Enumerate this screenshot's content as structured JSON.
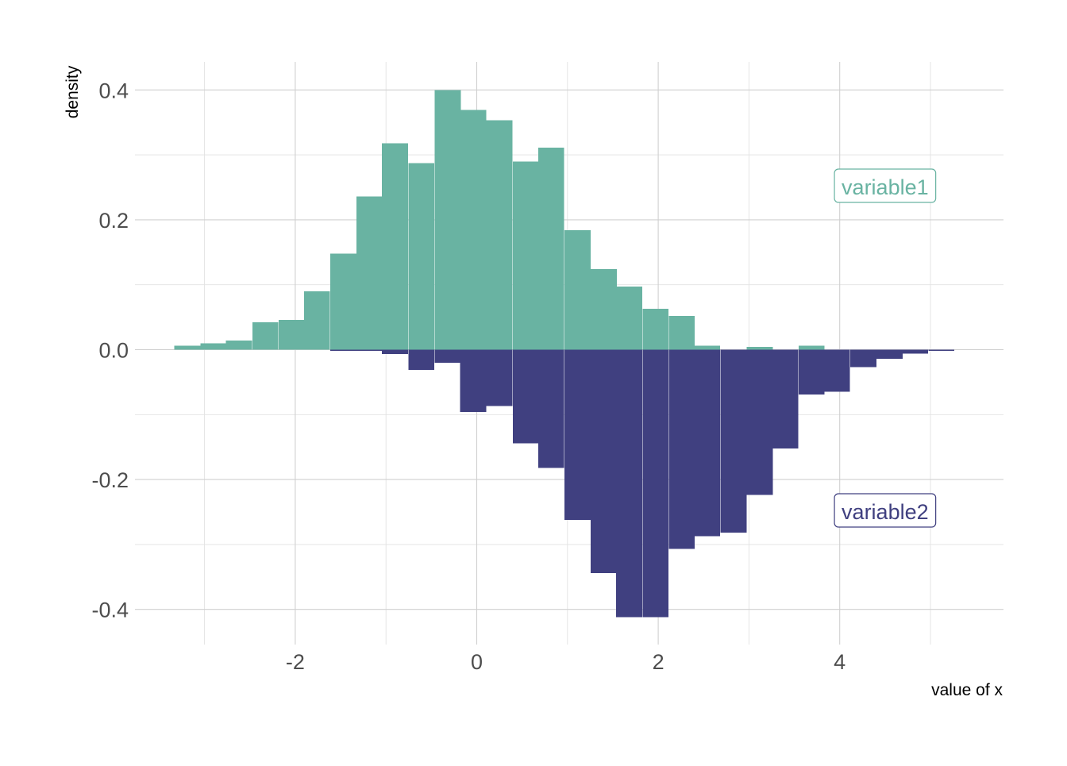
{
  "chart_data": {
    "type": "bar",
    "title": "",
    "xlabel": "value of x",
    "ylabel": "density",
    "xlim": [
      -3.85,
      5.75
    ],
    "ylim": [
      -0.45,
      0.445
    ],
    "grid": true,
    "legend": "none",
    "x_ticks": [
      {
        "value": -2,
        "label": "-2"
      },
      {
        "value": 0,
        "label": "0"
      },
      {
        "value": 2,
        "label": "2"
      },
      {
        "value": 4,
        "label": "4"
      }
    ],
    "y_ticks": [
      {
        "value": 0.4,
        "label": "0.4"
      },
      {
        "value": 0.2,
        "label": "0.2"
      },
      {
        "value": 0.0,
        "label": "0.0"
      },
      {
        "value": -0.2,
        "label": "-0.2"
      },
      {
        "value": -0.4,
        "label": "-0.4"
      }
    ],
    "bin_width": 0.287,
    "series": [
      {
        "name": "variable1",
        "color": "#69b3a2",
        "direction": "up",
        "label_anchor": {
          "x": 4.5,
          "y": 0.25
        },
        "bins": [
          {
            "x": -3.19,
            "y": 0.006
          },
          {
            "x": -2.9,
            "y": 0.01
          },
          {
            "x": -2.62,
            "y": 0.014
          },
          {
            "x": -2.33,
            "y": 0.042
          },
          {
            "x": -2.04,
            "y": 0.046
          },
          {
            "x": -1.76,
            "y": 0.09
          },
          {
            "x": -1.47,
            "y": 0.148
          },
          {
            "x": -1.18,
            "y": 0.236
          },
          {
            "x": -0.9,
            "y": 0.318
          },
          {
            "x": -0.61,
            "y": 0.287
          },
          {
            "x": -0.32,
            "y": 0.4
          },
          {
            "x": -0.04,
            "y": 0.369
          },
          {
            "x": 0.25,
            "y": 0.353
          },
          {
            "x": 0.54,
            "y": 0.29
          },
          {
            "x": 0.82,
            "y": 0.311
          },
          {
            "x": 1.11,
            "y": 0.184
          },
          {
            "x": 1.4,
            "y": 0.124
          },
          {
            "x": 1.68,
            "y": 0.097
          },
          {
            "x": 1.97,
            "y": 0.063
          },
          {
            "x": 2.26,
            "y": 0.052
          },
          {
            "x": 2.54,
            "y": 0.006
          },
          {
            "x": 2.83,
            "y": 0.0
          },
          {
            "x": 3.12,
            "y": 0.004
          },
          {
            "x": 3.4,
            "y": 0.0
          },
          {
            "x": 3.69,
            "y": 0.006
          }
        ]
      },
      {
        "name": "variable2",
        "color": "#404080",
        "direction": "down",
        "label_anchor": {
          "x": 4.5,
          "y": -0.25
        },
        "bins": [
          {
            "x": -1.47,
            "y": -0.002
          },
          {
            "x": -1.18,
            "y": -0.002
          },
          {
            "x": -0.9,
            "y": -0.007
          },
          {
            "x": -0.61,
            "y": -0.031
          },
          {
            "x": -0.32,
            "y": -0.02
          },
          {
            "x": -0.04,
            "y": -0.096
          },
          {
            "x": 0.25,
            "y": -0.087
          },
          {
            "x": 0.54,
            "y": -0.144
          },
          {
            "x": 0.82,
            "y": -0.182
          },
          {
            "x": 1.11,
            "y": -0.262
          },
          {
            "x": 1.4,
            "y": -0.344
          },
          {
            "x": 1.68,
            "y": -0.412
          },
          {
            "x": 1.97,
            "y": -0.412
          },
          {
            "x": 2.26,
            "y": -0.307
          },
          {
            "x": 2.54,
            "y": -0.287
          },
          {
            "x": 2.83,
            "y": -0.282
          },
          {
            "x": 3.12,
            "y": -0.224
          },
          {
            "x": 3.4,
            "y": -0.152
          },
          {
            "x": 3.69,
            "y": -0.069
          },
          {
            "x": 3.97,
            "y": -0.065
          },
          {
            "x": 4.26,
            "y": -0.027
          },
          {
            "x": 4.55,
            "y": -0.014
          },
          {
            "x": 4.83,
            "y": -0.006
          },
          {
            "x": 5.12,
            "y": -0.002
          }
        ]
      }
    ]
  }
}
